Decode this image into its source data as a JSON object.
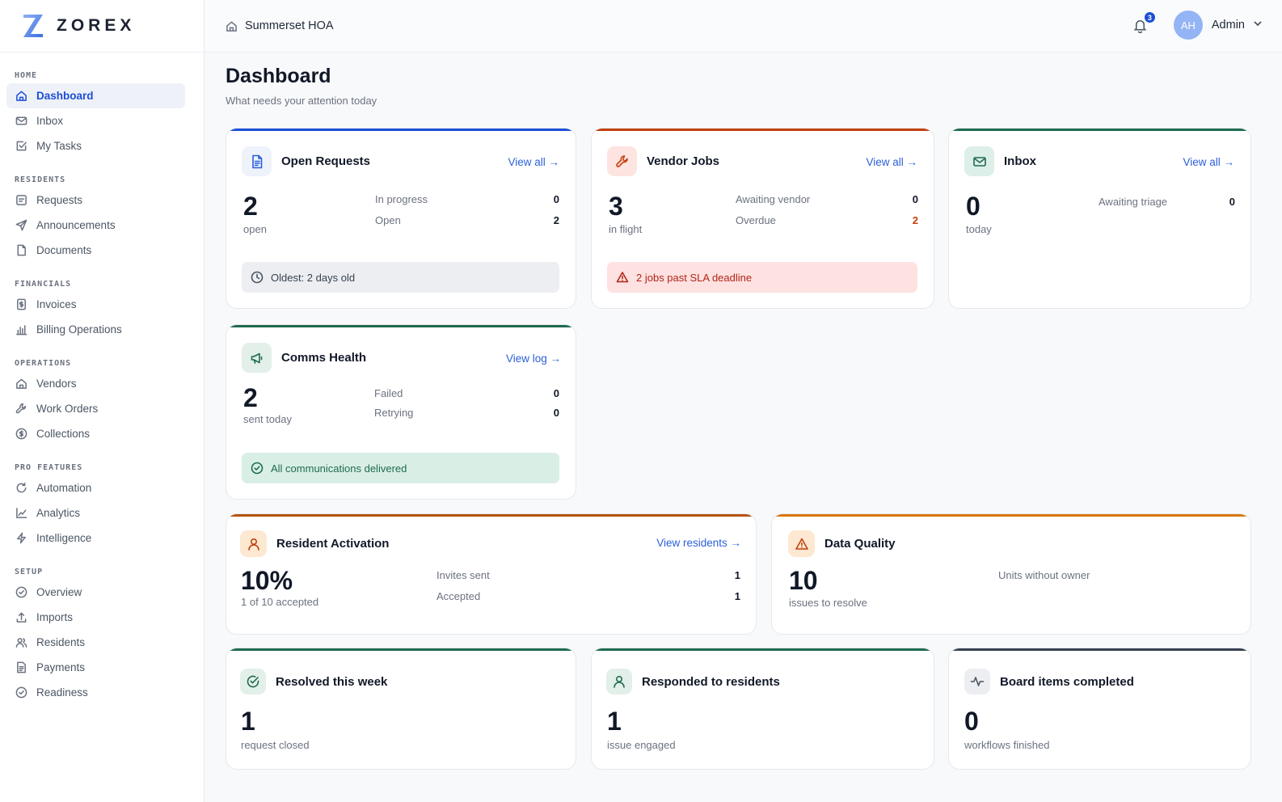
{
  "brand": {
    "name": "ZOREX"
  },
  "nav": {
    "sections": [
      {
        "title": "HOME",
        "items": [
          {
            "label": "Dashboard",
            "icon": "home-icon",
            "active": true
          },
          {
            "label": "Inbox",
            "icon": "mail-icon"
          },
          {
            "label": "My Tasks",
            "icon": "check-square-icon"
          }
        ]
      },
      {
        "title": "RESIDENTS",
        "items": [
          {
            "label": "Requests",
            "icon": "request-icon"
          },
          {
            "label": "Announcements",
            "icon": "send-icon"
          },
          {
            "label": "Documents",
            "icon": "file-icon"
          }
        ]
      },
      {
        "title": "FINANCIALS",
        "items": [
          {
            "label": "Invoices",
            "icon": "invoice-icon"
          },
          {
            "label": "Billing Operations",
            "icon": "bar-chart-icon"
          }
        ]
      },
      {
        "title": "OPERATIONS",
        "items": [
          {
            "label": "Vendors",
            "icon": "building-icon"
          },
          {
            "label": "Work Orders",
            "icon": "wrench-icon"
          },
          {
            "label": "Collections",
            "icon": "dollar-circle-icon"
          }
        ]
      },
      {
        "title": "PRO FEATURES",
        "items": [
          {
            "label": "Automation",
            "icon": "refresh-icon"
          },
          {
            "label": "Analytics",
            "icon": "line-chart-icon"
          },
          {
            "label": "Intelligence",
            "icon": "bolt-icon"
          }
        ]
      },
      {
        "title": "SETUP",
        "items": [
          {
            "label": "Overview",
            "icon": "check-circle-icon"
          },
          {
            "label": "Imports",
            "icon": "upload-icon"
          },
          {
            "label": "Residents",
            "icon": "users-icon"
          },
          {
            "label": "Payments",
            "icon": "receipt-icon"
          },
          {
            "label": "Readiness",
            "icon": "check-circle-icon"
          }
        ]
      }
    ]
  },
  "topbar": {
    "org": "Summerset HOA",
    "notifications": "3",
    "avatar_initials": "AH",
    "user": "Admin"
  },
  "page": {
    "title": "Dashboard",
    "subtitle": "What needs your attention today"
  },
  "cards": {
    "open_requests": {
      "title": "Open Requests",
      "link": "View all →",
      "big": "2",
      "big_sub": "open",
      "stats": [
        {
          "label": "In progress",
          "value": "0"
        },
        {
          "label": "Open",
          "value": "2"
        }
      ],
      "note": "Oldest: 2 days old",
      "accent": "#1d4ed8"
    },
    "vendor_jobs": {
      "title": "Vendor Jobs",
      "link": "View all →",
      "big": "3",
      "big_sub": "in flight",
      "stats": [
        {
          "label": "Awaiting vendor",
          "value": "0"
        },
        {
          "label": "Overdue",
          "value": "2"
        }
      ],
      "note": "2 jobs past SLA deadline",
      "accent": "#c2410c"
    },
    "inbox": {
      "title": "Inbox",
      "link": "View all →",
      "big": "0",
      "big_sub": "today",
      "stats": [
        {
          "label": "Awaiting triage",
          "value": "0"
        }
      ],
      "accent": "#1f6b4f"
    },
    "comms": {
      "title": "Comms Health",
      "link": "View log →",
      "big": "2",
      "big_sub": "sent today",
      "stats": [
        {
          "label": "Failed",
          "value": "0"
        },
        {
          "label": "Retrying",
          "value": "0"
        }
      ],
      "note": "All communications delivered",
      "accent": "#1f6b4f"
    },
    "activation": {
      "title": "Resident Activation",
      "link": "View residents →",
      "big": "10%",
      "big_sub": "1 of 10 accepted",
      "stats": [
        {
          "label": "Invites sent",
          "value": "1"
        },
        {
          "label": "Accepted",
          "value": "1"
        }
      ],
      "accent": "#b45309"
    },
    "data_quality": {
      "title": "Data Quality",
      "big": "10",
      "big_sub": "issues to resolve",
      "stats": [
        {
          "label": "Units without owner"
        }
      ],
      "accent": "#d97706"
    },
    "resolved": {
      "title": "Resolved this week",
      "big": "1",
      "big_sub": "request closed",
      "accent": "#1f6b4f"
    },
    "responded": {
      "title": "Responded to residents",
      "big": "1",
      "big_sub": "issue engaged",
      "accent": "#1f6b4f"
    },
    "board": {
      "title": "Board items completed",
      "big": "0",
      "big_sub": "workflows finished",
      "accent": "#374151"
    }
  }
}
